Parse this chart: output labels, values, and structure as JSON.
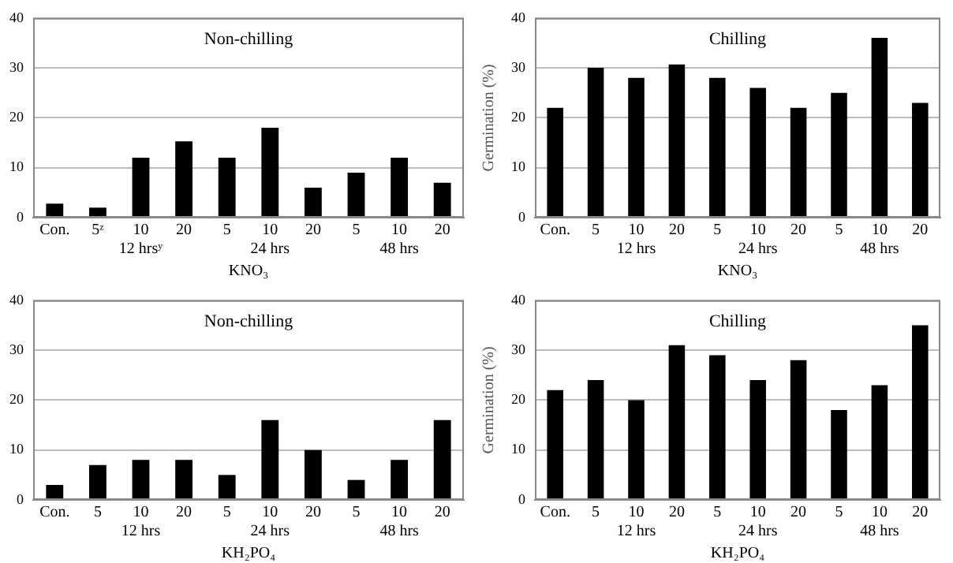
{
  "chart_data": [
    {
      "type": "bar",
      "title": "Non-chilling",
      "xlabel": "KNO₃",
      "categories": [
        "Con.",
        "5ᶻ",
        "10\n12 hrsʸ",
        "20",
        "5",
        "10\n24 hrs",
        "20",
        "5",
        "10\n48 hrs",
        "20"
      ],
      "values": [
        2.8,
        2,
        12,
        15.3,
        12,
        18,
        6,
        9,
        12,
        7
      ],
      "color": "#000000",
      "ylim": [
        0,
        40
      ],
      "yticks": [
        0,
        10,
        20,
        30,
        40
      ],
      "grid": "y"
    },
    {
      "type": "bar",
      "title": "Chilling",
      "xlabel": "KNO₃",
      "ylabel": "Germination (%)",
      "categories": [
        "Con.",
        "5",
        "10\n12 hrs",
        "20",
        "5",
        "10\n24 hrs",
        "20",
        "5",
        "10\n48 hrs",
        "20"
      ],
      "values": [
        22,
        30,
        28,
        30.7,
        28,
        26,
        22,
        25,
        36,
        23
      ],
      "color": "#000000",
      "ylim": [
        0,
        40
      ],
      "yticks": [
        0,
        10,
        20,
        30,
        40
      ],
      "grid": "y"
    },
    {
      "type": "bar",
      "title": "Non-chilling",
      "xlabel": "KH₂PO₄",
      "categories": [
        "Con.",
        "5",
        "10\n12 hrs",
        "20",
        "5",
        "10\n24 hrs",
        "20",
        "5",
        "10\n48 hrs",
        "20"
      ],
      "values": [
        3,
        7,
        8,
        8,
        5,
        16,
        10,
        4,
        8,
        16
      ],
      "color": "#000000",
      "ylim": [
        0,
        40
      ],
      "yticks": [
        0,
        10,
        20,
        30,
        40
      ],
      "grid": "y"
    },
    {
      "type": "bar",
      "title": "Chilling",
      "xlabel": "KH₂PO₄",
      "ylabel": "Germination (%)",
      "categories": [
        "Con.",
        "5",
        "10\n12 hrs",
        "20",
        "5",
        "10\n24 hrs",
        "20",
        "5",
        "10\n48 hrs",
        "20"
      ],
      "values": [
        22,
        24,
        20,
        31,
        29,
        24,
        28,
        18,
        23,
        35
      ],
      "color": "#000000",
      "ylim": [
        0,
        40
      ],
      "yticks": [
        0,
        10,
        20,
        30,
        40
      ],
      "grid": "y"
    }
  ]
}
